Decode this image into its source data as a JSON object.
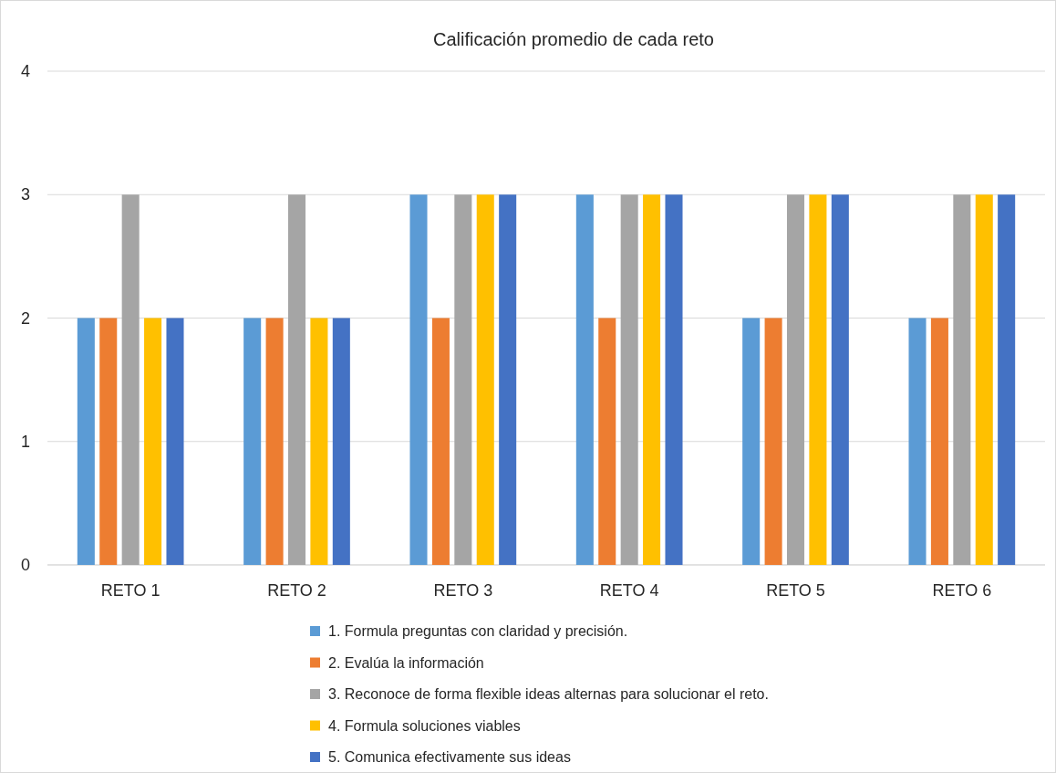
{
  "chart_data": {
    "type": "bar",
    "title": "Calificación promedio de cada reto",
    "categories": [
      "RETO 1",
      "RETO 2",
      "RETO 3",
      "RETO 4",
      "RETO 5",
      "RETO 6"
    ],
    "series": [
      {
        "name": "1. Formula preguntas con claridad y precisión.",
        "color": "#5b9bd5",
        "values": [
          2,
          2,
          3,
          3,
          2,
          2
        ]
      },
      {
        "name": "2. Evalúa la información",
        "color": "#ed7d31",
        "values": [
          2,
          2,
          2,
          2,
          2,
          2
        ]
      },
      {
        "name": "3. Reconoce de forma flexible ideas alternas para solucionar el reto.",
        "color": "#a5a5a5",
        "values": [
          3,
          3,
          3,
          3,
          3,
          3
        ]
      },
      {
        "name": "4. Formula soluciones viables",
        "color": "#ffc000",
        "values": [
          2,
          2,
          3,
          3,
          3,
          3
        ]
      },
      {
        "name": "5. Comunica efectivamente sus ideas",
        "color": "#4472c4",
        "values": [
          2,
          2,
          3,
          3,
          3,
          3
        ]
      }
    ],
    "ylim": [
      0,
      4
    ],
    "yticks": [
      0,
      1,
      2,
      3,
      4
    ],
    "grid": "y",
    "legend": "bottom"
  }
}
